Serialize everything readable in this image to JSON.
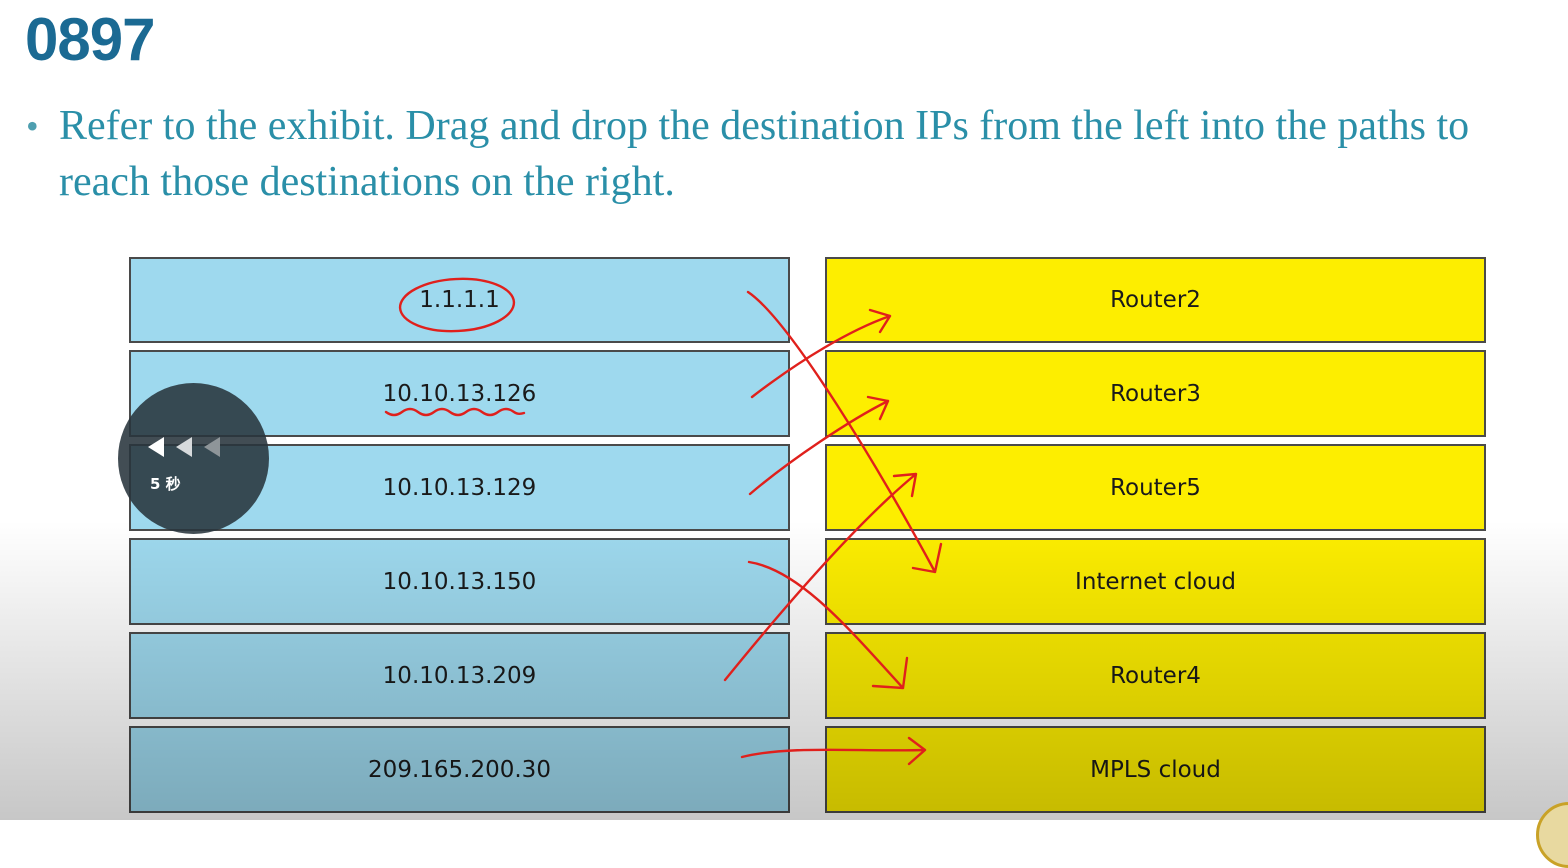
{
  "slide": {
    "title": "0897",
    "bullet_symbol": "•",
    "question": "Refer to the exhibit. Drag and drop the destination IPs from the left into the paths to reach those destinations on the right."
  },
  "left_items": [
    "1.1.1.1",
    "10.10.13.126",
    "10.10.13.129",
    "10.10.13.150",
    "10.10.13.209",
    "209.165.200.30"
  ],
  "right_items": [
    "Router2",
    "Router3",
    "Router5",
    "Internet cloud",
    "Router4",
    "MPLS cloud"
  ],
  "annotations": {
    "circled_item": "1.1.1.1",
    "underlined_item": "10.10.13.126",
    "arrows": [
      {
        "from": "1.1.1.1",
        "to": "Internet cloud"
      },
      {
        "from": "10.10.13.126",
        "to": "Router2"
      },
      {
        "from": "10.10.13.129",
        "to": "Router3"
      },
      {
        "from": "10.10.13.150",
        "to": "Router4"
      },
      {
        "from": "10.10.13.209",
        "to": "Router5"
      },
      {
        "from": "209.165.200.30",
        "to": "MPLS cloud"
      }
    ],
    "ink_color": "#e0201c"
  },
  "player_overlay": {
    "seek_label": "5 秒",
    "icon": "rewind-icon"
  },
  "colors": {
    "title": "#1b6a93",
    "question": "#2a8fa8",
    "left_box": "#9ed9ee",
    "right_box": "#fdee00"
  }
}
